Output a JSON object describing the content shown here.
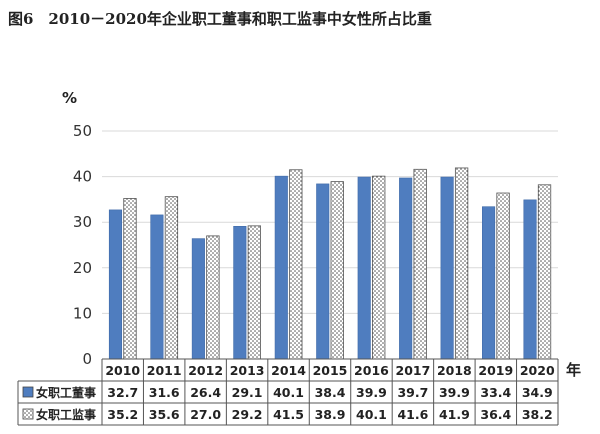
{
  "chart_data": {
    "type": "bar",
    "title": "图6　2010－2020年企业职工董事和职工监事中女性所占比重",
    "ylabel": "%",
    "xlabel": "年",
    "ylim": [
      0,
      50
    ],
    "yticks": [
      0,
      10,
      20,
      30,
      40,
      50
    ],
    "grid": true,
    "legend": "table-left",
    "categories": [
      "2010",
      "2011",
      "2012",
      "2013",
      "2014",
      "2015",
      "2016",
      "2017",
      "2018",
      "2019",
      "2020"
    ],
    "series": [
      {
        "name": "女职工董事",
        "color": "#4f7dbf",
        "values": [
          32.7,
          31.6,
          26.4,
          29.1,
          40.1,
          38.4,
          39.9,
          39.7,
          39.9,
          33.4,
          34.9
        ]
      },
      {
        "name": "女职工监事",
        "color": "#ffffff",
        "values": [
          35.2,
          35.6,
          27.0,
          29.2,
          41.5,
          38.9,
          40.1,
          41.6,
          41.9,
          36.4,
          38.2
        ]
      }
    ]
  }
}
